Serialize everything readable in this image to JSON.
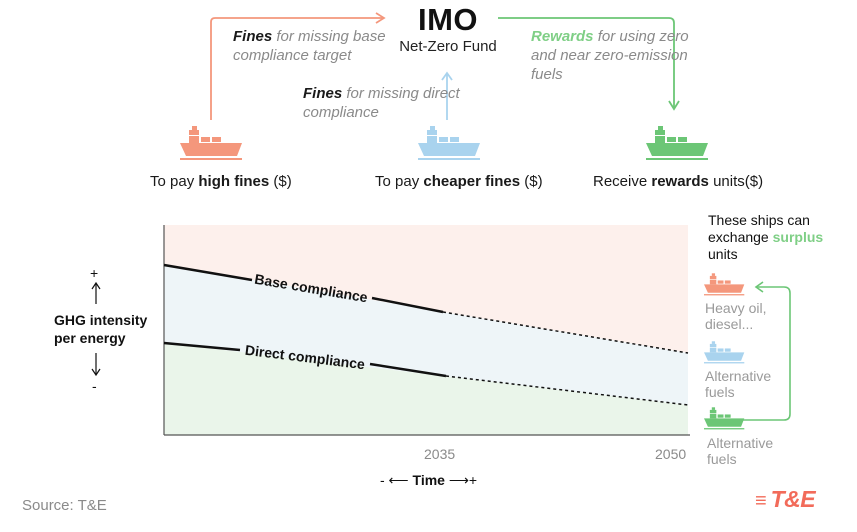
{
  "fund": {
    "title": "IMO",
    "subtitle": "Net-Zero Fund"
  },
  "notes": {
    "base_bold": "Fines",
    "base_rest": " for missing base compliance target",
    "direct_bold": "Fines",
    "direct_rest": " for missing direct compliance",
    "rewards_bold": "Rewards",
    "rewards_rest": " for using zero and near zero-emission fuels"
  },
  "ships": [
    {
      "prefix": "To pay ",
      "bold": "high fines",
      "suffix": " ($)",
      "color": "#f4977c"
    },
    {
      "prefix": "To pay ",
      "bold": "cheaper fines",
      "suffix": " ($)",
      "color": "#a9d3ee"
    },
    {
      "prefix": "Receive ",
      "bold": "rewards",
      "suffix": " units($)",
      "color": "#6cc676"
    }
  ],
  "chart": {
    "y_title_line1": "GHG intensity",
    "y_title_line2": "per energy",
    "y_plus": "+",
    "y_minus": "-",
    "line_base": "Base compliance",
    "line_direct": "Direct compliance",
    "tick_2035": "2035",
    "tick_2050": "2050",
    "x_prefix": "- ⟵ ",
    "x_label": "Time",
    "x_suffix": " ⟶+"
  },
  "side": {
    "surplus_1": "These ships can exchange ",
    "surplus_bold": "surplus",
    "surplus_2": " units",
    "heavy_1": "Heavy oil,",
    "heavy_2": "diesel...",
    "alt1_1": "Alternative",
    "alt1_2": "fuels",
    "alt2_1": "Alternative",
    "alt2_2": "fuels"
  },
  "source": "Source: T&E",
  "logo": "T&E",
  "colors": {
    "fine_orange": "#f4977c",
    "light_blue": "#a9d3ee",
    "reward_green": "#6cc676",
    "zone_red": "#fdf0ec",
    "zone_blue": "#eef5f8",
    "zone_green": "#eaf5ea"
  }
}
